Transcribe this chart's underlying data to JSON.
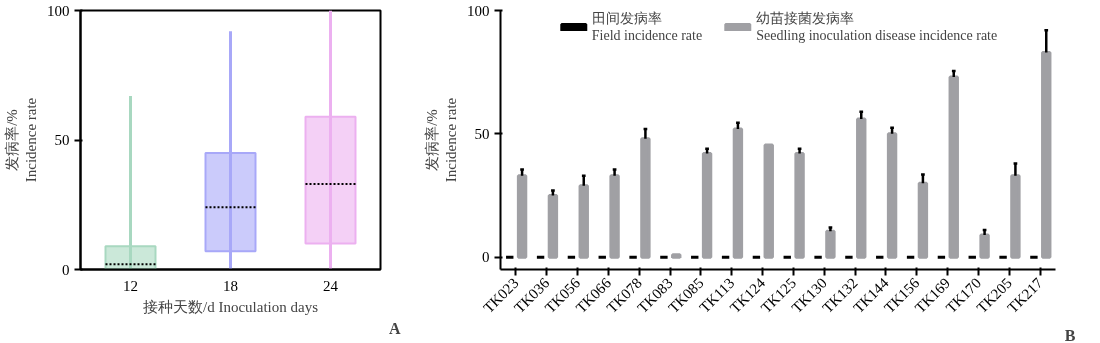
{
  "chart_data": [
    {
      "type": "box",
      "categories": [
        "12",
        "18",
        "24"
      ],
      "colors": [
        "#a8d8c0",
        "#a8a8f8",
        "#ecb0f0"
      ],
      "boxes": [
        {
          "low": 0,
          "q1": 0,
          "median": 2,
          "q3": 9,
          "high": 67
        },
        {
          "low": 0,
          "q1": 7,
          "median": 24,
          "q3": 45,
          "high": 92
        },
        {
          "low": 0,
          "q1": 10,
          "median": 33,
          "q3": 59,
          "high": 100
        }
      ],
      "xlabel": "接种天数/d Inoculation days",
      "ylabel": "发病率/%\nIncidence rate",
      "ylim": [
        0,
        100
      ],
      "yticks": [
        0,
        50,
        100
      ],
      "grid": false,
      "annotations": [
        "A"
      ]
    },
    {
      "type": "bar",
      "categories": [
        "TK023",
        "TK036",
        "TK056",
        "TK066",
        "TK078",
        "TK083",
        "TK085",
        "TK113",
        "TK124",
        "TK125",
        "TK130",
        "TK132",
        "TK144",
        "TK156",
        "TK169",
        "TK170",
        "TK205",
        "TK217"
      ],
      "series": [
        {
          "name": "田间发病率\nField incidence rate",
          "color": "#000000",
          "values": [
            0,
            0,
            0,
            0,
            0,
            0,
            0,
            0,
            0,
            0,
            0,
            0,
            0,
            0,
            0,
            0,
            0,
            0
          ]
        },
        {
          "name": "幼苗接菌发病率\nSeedling inoculation disease incidence rate",
          "color": "#a0a0a4",
          "values": [
            33,
            25,
            29,
            33,
            48,
            1,
            42,
            52,
            45.5,
            42,
            10.5,
            56,
            50,
            30,
            73,
            9,
            33,
            83
          ],
          "errors": [
            [
              33,
              35.5
            ],
            [
              25,
              27
            ],
            [
              29,
              33
            ],
            [
              33,
              35.5
            ],
            [
              48,
              52
            ],
            null,
            [
              42,
              44
            ],
            [
              52,
              54.5
            ],
            null,
            [
              42,
              44
            ],
            [
              10.5,
              12
            ],
            [
              56,
              59
            ],
            [
              50,
              52.5
            ],
            [
              30,
              33.5
            ],
            [
              73,
              75.5
            ],
            [
              9,
              11
            ],
            [
              33,
              38
            ],
            [
              83,
              92
            ]
          ]
        }
      ],
      "ylabel": "发病率/%\nIncidence rate",
      "ylim": [
        -5,
        100
      ],
      "yticks": [
        0,
        50,
        100
      ],
      "grid": false,
      "legend": "top",
      "annotations": [
        "B"
      ]
    }
  ]
}
